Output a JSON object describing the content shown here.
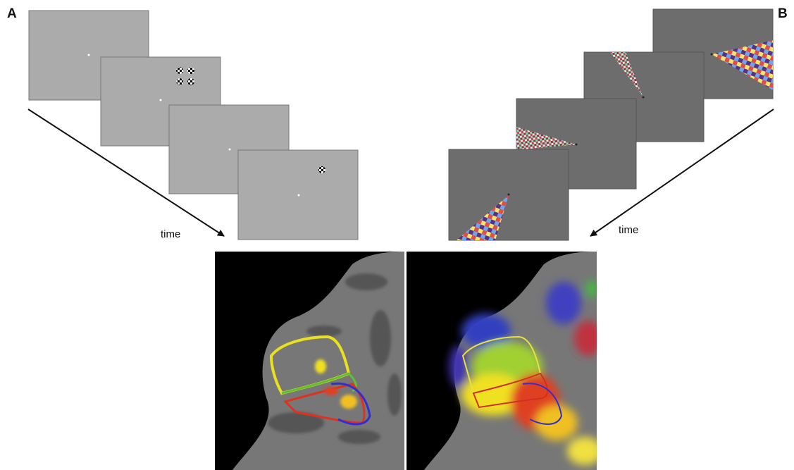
{
  "panel_a": {
    "label": "A",
    "time_label": "time"
  },
  "panel_b": {
    "label": "B",
    "time_label": "time"
  }
}
